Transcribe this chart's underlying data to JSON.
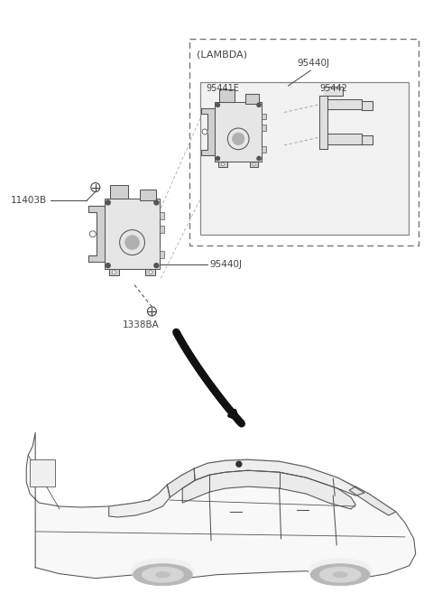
{
  "bg_color": "#ffffff",
  "line_color": "#444444",
  "dash_color": "#666666",
  "labels": {
    "LAMBDA": "(LAMBDA)",
    "95440J_top": "95440J",
    "95441E": "95441E",
    "95442": "95442",
    "11403B": "11403B",
    "95440J_main": "95440J",
    "1338BA": "1338BA"
  },
  "fig_width": 4.8,
  "fig_height": 6.57,
  "dpi": 100
}
